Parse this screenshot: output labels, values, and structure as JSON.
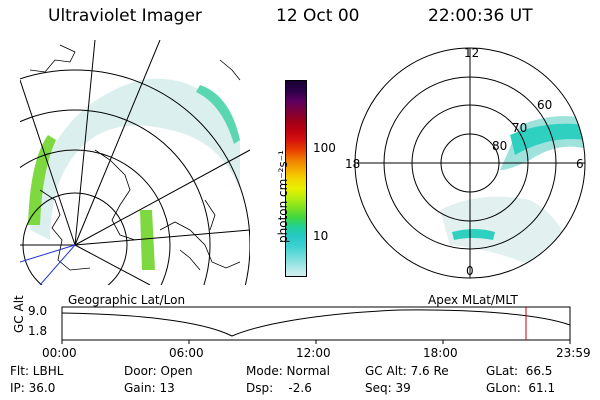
{
  "header": {
    "title": "Ultraviolet Imager",
    "date": "12 Oct 00",
    "time": "22:00:36 UT"
  },
  "left_panel": {
    "label": "Geographic Lat/Lon"
  },
  "right_panel": {
    "label": "Apex MLat/MLT",
    "mlt_labels": [
      "12",
      "18",
      "6",
      "0"
    ],
    "lat_labels": [
      "80",
      "70",
      "60"
    ]
  },
  "colorbar": {
    "unit_label": "photon cm⁻²s⁻¹",
    "tick_labels": [
      "100",
      "10"
    ],
    "colors": [
      "#1a0033",
      "#2a0048",
      "#5a0060",
      "#7a0040",
      "#99001a",
      "#bb0010",
      "#d41010",
      "#e83a00",
      "#f07800",
      "#f4a800",
      "#f3d400",
      "#e8f000",
      "#b8ee10",
      "#7ee220",
      "#40d640",
      "#20d09a",
      "#28c8c8",
      "#40d2d2",
      "#70dcdc",
      "#a8e6e6",
      "#d4efef"
    ]
  },
  "altitude_plot": {
    "ylabel": "GC Alt",
    "y_ticks": [
      "9.0",
      "1.8"
    ],
    "x_ticks": [
      "00:00",
      "06:00",
      "12:00",
      "18:00",
      "23:59"
    ],
    "marker_color": "#cc0000"
  },
  "info": {
    "col1": [
      "Flt: LBHL",
      "IP: 36.0"
    ],
    "col2": [
      "Door: Open",
      "Gain: 13"
    ],
    "col3": [
      "Mode: Normal",
      "Dsp:    -2.6"
    ],
    "col4": [
      "GC Alt: 7.6 Re",
      "Seq: 39"
    ],
    "col5": [
      "GLat:  66.5",
      "GLon:  61.1"
    ]
  }
}
